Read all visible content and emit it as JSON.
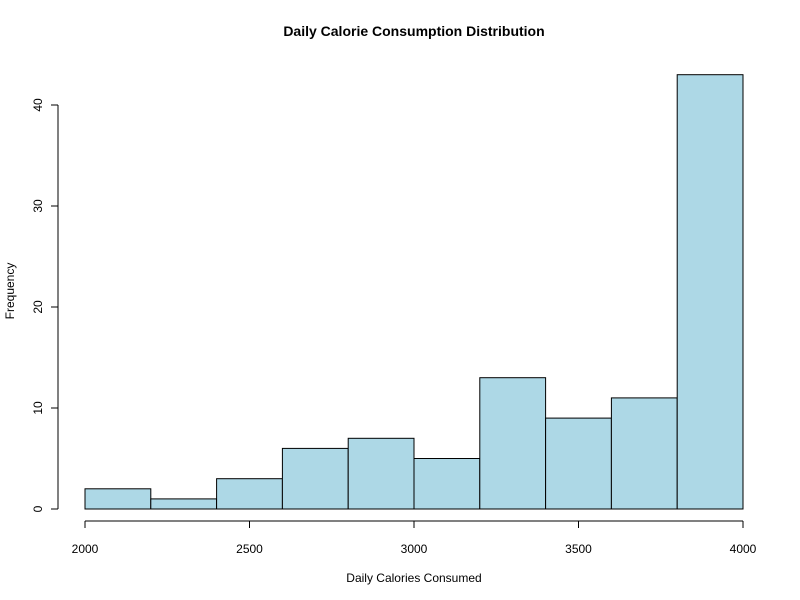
{
  "chart_data": {
    "type": "bar",
    "title": "Daily Calorie Consumption Distribution",
    "xlabel": "Daily Calories Consumed",
    "ylabel": "Frequency",
    "bin_edges": [
      2000,
      2200,
      2400,
      2600,
      2800,
      3000,
      3200,
      3400,
      3600,
      3800,
      4000
    ],
    "values": [
      2,
      1,
      3,
      6,
      7,
      5,
      13,
      9,
      11,
      43
    ],
    "xlim": [
      2000,
      4000
    ],
    "ylim": [
      0,
      43
    ],
    "xticks": [
      2000,
      2500,
      3000,
      3500,
      4000
    ],
    "yticks": [
      0,
      10,
      20,
      30,
      40
    ],
    "bar_color": "#add8e6",
    "grid": false
  }
}
